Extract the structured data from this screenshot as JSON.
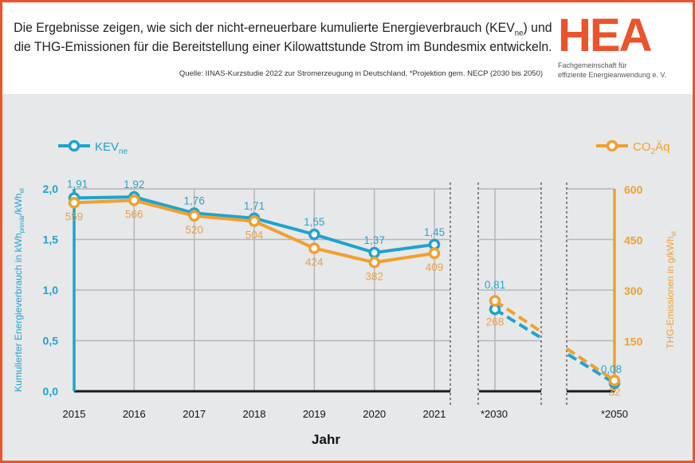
{
  "header": {
    "title_line1_pre": "Die Ergebnisse zeigen, wie sich der nicht-erneuerbare kumulierte Energieverbrauch (KEV",
    "title_line1_sub": "ne",
    "title_line1_post": ") und",
    "title_line2": "die THG-Emissionen für die Bereitstellung einer Kilowattstunde Strom im Bundesmix entwickeln.",
    "source": "Quelle: IINAS-Kurzstudie 2022 zur Stromerzeugung in Deutschland, *Projektion gem. NECP (2030 bis 2050)"
  },
  "logo": {
    "text": "HEA",
    "sub_line1": "Fachgemeinschaft für",
    "sub_line2": "effiziente Energieanwendung e. V.",
    "color": "#e9542d"
  },
  "chart_data": {
    "type": "line",
    "xlabel": "Jahr",
    "categories": [
      "2015",
      "2016",
      "2017",
      "2018",
      "2019",
      "2020",
      "2021",
      "*2030",
      "*2050"
    ],
    "ylabel_left": "Kumulierter Energieverbrauch in kWh",
    "ylabel_left_sub1": "primär",
    "ylabel_left_mid": "/kWh",
    "ylabel_left_sub2": "el",
    "ylabel_right": "THG-Emissionen in g/kWh",
    "ylabel_right_sub": "el",
    "ylim_left": [
      0,
      2.0
    ],
    "ylim_right": [
      0,
      600
    ],
    "yticks_left": [
      "0,0",
      "0,5",
      "1,0",
      "1,5",
      "2,0"
    ],
    "yticks_right": [
      "150",
      "300",
      "450",
      "600"
    ],
    "grid": true,
    "projection_style": "dashed between 2030 and 2050",
    "series": [
      {
        "name": "KEV",
        "name_sub": "ne",
        "axis": "left",
        "color": "#1ea3cf",
        "values": [
          1.91,
          1.92,
          1.76,
          1.71,
          1.55,
          1.37,
          1.45,
          0.81,
          0.08
        ],
        "labels": [
          "1,91",
          "1,92",
          "1,76",
          "1,71",
          "1,55",
          "1,37",
          "1,45",
          "0,81",
          "0,08"
        ]
      },
      {
        "name": "CO",
        "name_sub": "2",
        "name_post": "Äq",
        "axis": "right",
        "color": "#f0a030",
        "values": [
          559,
          566,
          520,
          504,
          424,
          382,
          409,
          268,
          32
        ],
        "labels": [
          "559",
          "566",
          "520",
          "504",
          "424",
          "382",
          "409",
          "268",
          "32"
        ]
      }
    ]
  }
}
